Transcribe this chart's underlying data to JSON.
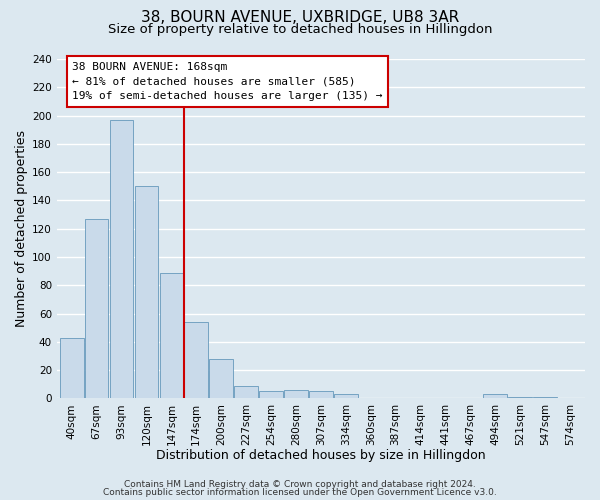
{
  "title": "38, BOURN AVENUE, UXBRIDGE, UB8 3AR",
  "subtitle": "Size of property relative to detached houses in Hillingdon",
  "xlabel": "Distribution of detached houses by size in Hillingdon",
  "ylabel": "Number of detached properties",
  "bar_labels": [
    "40sqm",
    "67sqm",
    "93sqm",
    "120sqm",
    "147sqm",
    "174sqm",
    "200sqm",
    "227sqm",
    "254sqm",
    "280sqm",
    "307sqm",
    "334sqm",
    "360sqm",
    "387sqm",
    "414sqm",
    "441sqm",
    "467sqm",
    "494sqm",
    "521sqm",
    "547sqm",
    "574sqm"
  ],
  "bar_values": [
    43,
    127,
    197,
    150,
    89,
    54,
    28,
    9,
    5,
    6,
    5,
    3,
    0,
    0,
    0,
    0,
    0,
    3,
    1,
    1,
    0
  ],
  "bar_color": "#c9daea",
  "bar_edge_color": "#6699bb",
  "vline_x": 4.5,
  "annotation_title": "38 BOURN AVENUE: 168sqm",
  "annotation_line1": "← 81% of detached houses are smaller (585)",
  "annotation_line2": "19% of semi-detached houses are larger (135) →",
  "annotation_box_color": "#ffffff",
  "annotation_box_edge": "#cc0000",
  "vline_color": "#cc0000",
  "ylim": [
    0,
    240
  ],
  "yticks": [
    0,
    20,
    40,
    60,
    80,
    100,
    120,
    140,
    160,
    180,
    200,
    220,
    240
  ],
  "footer1": "Contains HM Land Registry data © Crown copyright and database right 2024.",
  "footer2": "Contains public sector information licensed under the Open Government Licence v3.0.",
  "background_color": "#dce8f0",
  "plot_bg_color": "#dce8f0",
  "grid_color": "#ffffff",
  "title_fontsize": 11,
  "subtitle_fontsize": 9.5,
  "axis_label_fontsize": 9,
  "tick_fontsize": 7.5,
  "footer_fontsize": 6.5
}
